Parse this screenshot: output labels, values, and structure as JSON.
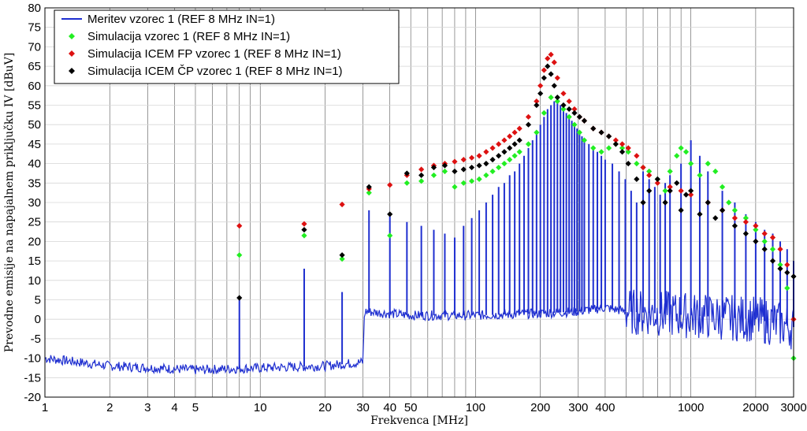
{
  "chart_data": {
    "type": "line",
    "xlabel": "Frekvenca [MHz]",
    "ylabel": "Prevodne emisije na napajalnem priključku IV [dBuV]",
    "x_scale": "log",
    "xlim": [
      1,
      3000
    ],
    "ylim": [
      -20,
      80
    ],
    "grid": true,
    "legend_position": "top-left",
    "x_ticks": [
      1,
      2,
      3,
      4,
      5,
      10,
      20,
      30,
      40,
      50,
      100,
      200,
      300,
      400,
      1000,
      2000,
      3000
    ],
    "y_ticks": [
      -20,
      -15,
      -10,
      -5,
      0,
      5,
      10,
      15,
      20,
      25,
      30,
      35,
      40,
      45,
      50,
      55,
      60,
      65,
      70,
      75,
      80
    ],
    "series": [
      {
        "name": "Meritev vzorec 1 (REF 8 MHz IN=1)",
        "style": "line",
        "color": "#1f2fd0",
        "baseline": [
          [
            1,
            -10
          ],
          [
            2,
            -12
          ],
          [
            5,
            -13
          ],
          [
            10,
            -12.5
          ],
          [
            20,
            -12
          ],
          [
            30,
            -11
          ],
          [
            30.5,
            2
          ],
          [
            50,
            1
          ],
          [
            100,
            1
          ],
          [
            200,
            1.5
          ],
          [
            300,
            2
          ],
          [
            400,
            3
          ],
          [
            500,
            2
          ],
          [
            1000,
            1
          ],
          [
            2000,
            0
          ],
          [
            3000,
            -2
          ]
        ],
        "peaks": [
          [
            8,
            5
          ],
          [
            16,
            13
          ],
          [
            24,
            7
          ],
          [
            32,
            28
          ],
          [
            40,
            27
          ],
          [
            48,
            25
          ],
          [
            56,
            24
          ],
          [
            64,
            23
          ],
          [
            72,
            22
          ],
          [
            80,
            21
          ],
          [
            88,
            24
          ],
          [
            96,
            26
          ],
          [
            104,
            28
          ],
          [
            112,
            30
          ],
          [
            120,
            32
          ],
          [
            128,
            34
          ],
          [
            136,
            35
          ],
          [
            144,
            37
          ],
          [
            152,
            38
          ],
          [
            160,
            40
          ],
          [
            168,
            42
          ],
          [
            176,
            44
          ],
          [
            184,
            46
          ],
          [
            192,
            48
          ],
          [
            200,
            50
          ],
          [
            208,
            52
          ],
          [
            216,
            54
          ],
          [
            224,
            55
          ],
          [
            232,
            56
          ],
          [
            240,
            56
          ],
          [
            248,
            55
          ],
          [
            256,
            54
          ],
          [
            264,
            53
          ],
          [
            272,
            52
          ],
          [
            280,
            51
          ],
          [
            288,
            50
          ],
          [
            296,
            49
          ],
          [
            304,
            48
          ],
          [
            312,
            47
          ],
          [
            320,
            46
          ],
          [
            336,
            45
          ],
          [
            352,
            44
          ],
          [
            368,
            43
          ],
          [
            384,
            42
          ],
          [
            400,
            41
          ],
          [
            432,
            40
          ],
          [
            464,
            38
          ],
          [
            496,
            36
          ],
          [
            528,
            33
          ],
          [
            560,
            30
          ],
          [
            600,
            38
          ],
          [
            640,
            36
          ],
          [
            680,
            34
          ],
          [
            720,
            32
          ],
          [
            760,
            35
          ],
          [
            800,
            37
          ],
          [
            900,
            40
          ],
          [
            1000,
            46
          ],
          [
            1100,
            42
          ],
          [
            1200,
            38
          ],
          [
            1400,
            33
          ],
          [
            1600,
            30
          ],
          [
            1800,
            27
          ],
          [
            2000,
            25
          ],
          [
            2200,
            23
          ],
          [
            2400,
            22
          ],
          [
            2600,
            20
          ],
          [
            2800,
            18
          ],
          [
            3000,
            15
          ]
        ]
      },
      {
        "name": "Simulacija vzorec 1 (REF 8 MHz IN=1)",
        "style": "markers",
        "color": "#22ee22",
        "points": [
          [
            8,
            16.5
          ],
          [
            16,
            21.5
          ],
          [
            24,
            15.5
          ],
          [
            32,
            32.5
          ],
          [
            40,
            21.5
          ],
          [
            48,
            35
          ],
          [
            56,
            35.5
          ],
          [
            64,
            37
          ],
          [
            72,
            38
          ],
          [
            80,
            34
          ],
          [
            88,
            35
          ],
          [
            96,
            35.5
          ],
          [
            104,
            36
          ],
          [
            112,
            37
          ],
          [
            120,
            38
          ],
          [
            128,
            39
          ],
          [
            136,
            40
          ],
          [
            144,
            41
          ],
          [
            152,
            42
          ],
          [
            160,
            43
          ],
          [
            176,
            45
          ],
          [
            192,
            48
          ],
          [
            208,
            53
          ],
          [
            224,
            57
          ],
          [
            240,
            56
          ],
          [
            256,
            54
          ],
          [
            272,
            52
          ],
          [
            288,
            50
          ],
          [
            304,
            48
          ],
          [
            320,
            46
          ],
          [
            352,
            44
          ],
          [
            384,
            43
          ],
          [
            416,
            44
          ],
          [
            448,
            45
          ],
          [
            480,
            44
          ],
          [
            512,
            43
          ],
          [
            560,
            40
          ],
          [
            600,
            39
          ],
          [
            640,
            38
          ],
          [
            700,
            36
          ],
          [
            760,
            33
          ],
          [
            800,
            38
          ],
          [
            860,
            42
          ],
          [
            900,
            44
          ],
          [
            950,
            43
          ],
          [
            1000,
            40
          ],
          [
            1100,
            37
          ],
          [
            1200,
            40
          ],
          [
            1300,
            38
          ],
          [
            1400,
            34
          ],
          [
            1500,
            30
          ],
          [
            1600,
            28
          ],
          [
            1800,
            26
          ],
          [
            2000,
            23
          ],
          [
            2200,
            20
          ],
          [
            2400,
            18
          ],
          [
            2600,
            14
          ],
          [
            2800,
            8
          ],
          [
            3000,
            -10
          ]
        ]
      },
      {
        "name": "Simulacija ICEM FP vzorec 1 (REF 8 MHz IN=1)",
        "style": "markers",
        "color": "#dd1111",
        "points": [
          [
            8,
            24
          ],
          [
            16,
            24.5
          ],
          [
            24,
            29.5
          ],
          [
            32,
            33.5
          ],
          [
            40,
            34.5
          ],
          [
            48,
            37
          ],
          [
            56,
            38.5
          ],
          [
            64,
            39.5
          ],
          [
            72,
            40
          ],
          [
            80,
            40.5
          ],
          [
            88,
            41
          ],
          [
            96,
            41.5
          ],
          [
            104,
            42
          ],
          [
            112,
            43
          ],
          [
            120,
            44
          ],
          [
            128,
            45
          ],
          [
            136,
            46
          ],
          [
            144,
            47
          ],
          [
            152,
            48
          ],
          [
            160,
            49
          ],
          [
            176,
            52
          ],
          [
            192,
            56
          ],
          [
            200,
            60
          ],
          [
            208,
            64
          ],
          [
            216,
            67
          ],
          [
            224,
            68
          ],
          [
            232,
            66
          ],
          [
            240,
            62
          ],
          [
            256,
            58
          ],
          [
            272,
            56
          ],
          [
            288,
            54
          ],
          [
            304,
            52
          ],
          [
            320,
            51
          ],
          [
            352,
            49
          ],
          [
            384,
            48
          ],
          [
            416,
            47
          ],
          [
            448,
            46
          ],
          [
            480,
            45
          ],
          [
            512,
            44
          ],
          [
            560,
            42
          ],
          [
            600,
            39
          ],
          [
            640,
            37
          ],
          [
            700,
            35
          ],
          [
            800,
            34
          ],
          [
            900,
            33
          ],
          [
            1000,
            32
          ],
          [
            1200,
            30
          ],
          [
            1400,
            28
          ],
          [
            1600,
            26
          ],
          [
            1800,
            25
          ],
          [
            2000,
            24
          ],
          [
            2200,
            22
          ],
          [
            2400,
            21
          ],
          [
            2600,
            18
          ],
          [
            2800,
            14
          ],
          [
            3000,
            0
          ]
        ]
      },
      {
        "name": "Simulacija ICEM ČP vzorec 1 (REF 8 MHz IN=1)",
        "style": "markers",
        "color": "#000000",
        "points": [
          [
            8,
            5.5
          ],
          [
            16,
            23
          ],
          [
            24,
            16.5
          ],
          [
            32,
            34
          ],
          [
            40,
            27
          ],
          [
            48,
            37.5
          ],
          [
            56,
            37
          ],
          [
            64,
            39
          ],
          [
            72,
            39.5
          ],
          [
            80,
            38
          ],
          [
            88,
            38.5
          ],
          [
            96,
            39
          ],
          [
            104,
            39.5
          ],
          [
            112,
            40
          ],
          [
            120,
            41
          ],
          [
            128,
            42
          ],
          [
            136,
            43
          ],
          [
            144,
            44
          ],
          [
            152,
            45
          ],
          [
            160,
            46
          ],
          [
            176,
            50
          ],
          [
            192,
            55
          ],
          [
            200,
            58
          ],
          [
            208,
            62
          ],
          [
            216,
            65
          ],
          [
            224,
            63
          ],
          [
            232,
            60
          ],
          [
            240,
            57
          ],
          [
            256,
            55
          ],
          [
            272,
            54
          ],
          [
            288,
            53
          ],
          [
            304,
            52
          ],
          [
            320,
            51
          ],
          [
            352,
            49
          ],
          [
            384,
            48
          ],
          [
            416,
            47
          ],
          [
            448,
            45
          ],
          [
            480,
            43
          ],
          [
            512,
            40
          ],
          [
            560,
            36
          ],
          [
            600,
            30
          ],
          [
            640,
            33
          ],
          [
            700,
            36
          ],
          [
            760,
            30
          ],
          [
            800,
            33
          ],
          [
            860,
            35
          ],
          [
            900,
            28
          ],
          [
            950,
            32
          ],
          [
            1000,
            33
          ],
          [
            1100,
            27
          ],
          [
            1200,
            30
          ],
          [
            1300,
            26
          ],
          [
            1400,
            28
          ],
          [
            1600,
            24
          ],
          [
            1800,
            22
          ],
          [
            2000,
            20
          ],
          [
            2200,
            18
          ],
          [
            2400,
            15
          ],
          [
            2600,
            13
          ],
          [
            2800,
            12
          ],
          [
            3000,
            11
          ]
        ]
      }
    ]
  }
}
